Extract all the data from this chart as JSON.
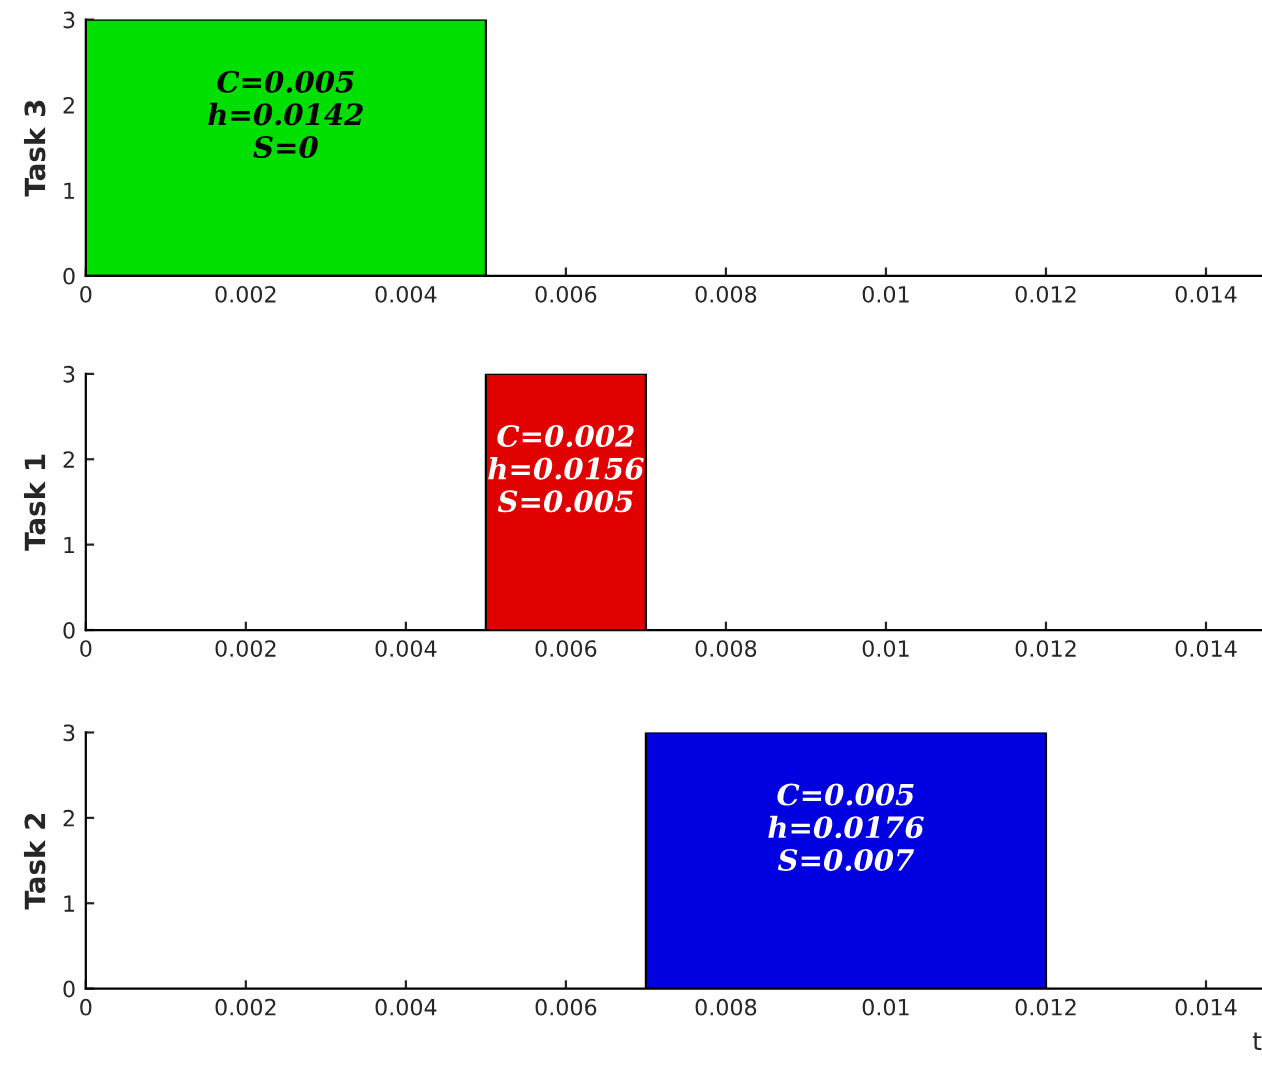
{
  "chart_data": [
    {
      "type": "area",
      "ylabel": "Task 3",
      "xlim": [
        0,
        0.0147
      ],
      "ylim": [
        0,
        3
      ],
      "xticks": [
        0,
        0.002,
        0.004,
        0.006,
        0.008,
        0.01,
        0.012,
        0.014
      ],
      "yticks": [
        0,
        1,
        2,
        3
      ],
      "grid": false,
      "legend": false,
      "series": [
        {
          "x": [
            0,
            0.005
          ],
          "values": [
            3,
            3
          ],
          "color": "#00e000"
        }
      ],
      "annotations": [
        "C=0.005\nh=0.0142\nS=0"
      ]
    },
    {
      "type": "area",
      "ylabel": "Task 1",
      "xlim": [
        0,
        0.0147
      ],
      "ylim": [
        0,
        3
      ],
      "xticks": [
        0,
        0.002,
        0.004,
        0.006,
        0.008,
        0.01,
        0.012,
        0.014
      ],
      "yticks": [
        0,
        1,
        2,
        3
      ],
      "grid": false,
      "legend": false,
      "series": [
        {
          "x": [
            0.005,
            0.007
          ],
          "values": [
            3,
            3
          ],
          "color": "#e00000"
        }
      ],
      "annotations": [
        "C=0.002\nh=0.0156\nS=0.005"
      ]
    },
    {
      "type": "area",
      "ylabel": "Task 2",
      "xlabel": "t",
      "xlim": [
        0,
        0.0147
      ],
      "ylim": [
        0,
        3
      ],
      "xticks": [
        0,
        0.002,
        0.004,
        0.006,
        0.008,
        0.01,
        0.012,
        0.014
      ],
      "yticks": [
        0,
        1,
        2,
        3
      ],
      "grid": false,
      "legend": false,
      "series": [
        {
          "x": [
            0.007,
            0.012
          ],
          "values": [
            3,
            3
          ],
          "color": "#0000e0"
        }
      ],
      "annotations": [
        "C=0.005\nh=0.0176\nS=0.007"
      ]
    }
  ]
}
